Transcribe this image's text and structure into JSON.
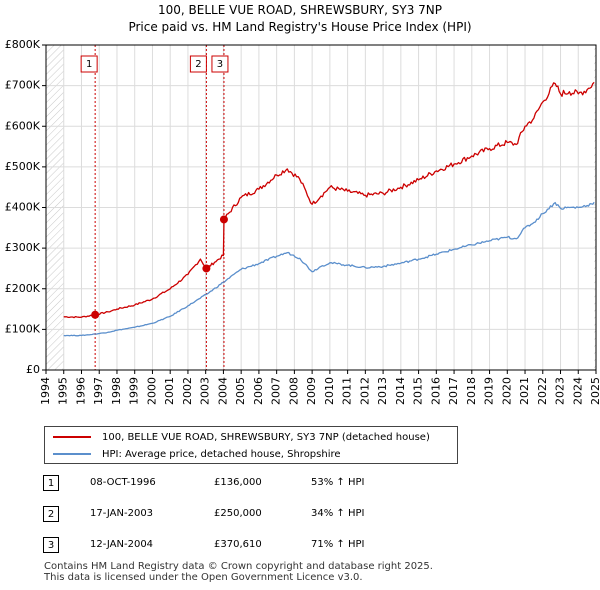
{
  "chart_data": {
    "type": "line",
    "title": "100, BELLE VUE ROAD, SHREWSBURY, SY3 7NP",
    "subtitle": "Price paid vs. HM Land Registry's House Price Index (HPI)",
    "xlabel": "",
    "ylabel": "",
    "xlim": [
      1994,
      2025
    ],
    "ylim": [
      0,
      800000
    ],
    "y_ticks": [
      {
        "value": 0,
        "label": "£0"
      },
      {
        "value": 100000,
        "label": "£100K"
      },
      {
        "value": 200000,
        "label": "£200K"
      },
      {
        "value": 300000,
        "label": "£300K"
      },
      {
        "value": 400000,
        "label": "£400K"
      },
      {
        "value": 500000,
        "label": "£500K"
      },
      {
        "value": 600000,
        "label": "£600K"
      },
      {
        "value": 700000,
        "label": "£700K"
      },
      {
        "value": 800000,
        "label": "£800K"
      }
    ],
    "x_ticks": [
      "1994",
      "1995",
      "1996",
      "1997",
      "1998",
      "1999",
      "2000",
      "2001",
      "2002",
      "2003",
      "2004",
      "2005",
      "2006",
      "2007",
      "2008",
      "2009",
      "2010",
      "2011",
      "2012",
      "2013",
      "2014",
      "2015",
      "2016",
      "2017",
      "2018",
      "2019",
      "2020",
      "2021",
      "2022",
      "2023",
      "2024",
      "2025"
    ],
    "series": [
      {
        "name": "100, BELLE VUE ROAD, SHREWSBURY, SY3 7NP (detached house)",
        "color": "#cc0000",
        "points": [
          [
            1995.0,
            131000
          ],
          [
            1996.0,
            130000
          ],
          [
            1996.77,
            136000
          ],
          [
            1997.5,
            143000
          ],
          [
            1998.0,
            150000
          ],
          [
            1999.0,
            160000
          ],
          [
            2000.0,
            175000
          ],
          [
            2001.0,
            200000
          ],
          [
            2002.0,
            235000
          ],
          [
            2002.7,
            273000
          ],
          [
            2003.04,
            250000
          ],
          [
            2003.5,
            265000
          ],
          [
            2004.0,
            282000
          ],
          [
            2004.03,
            370610
          ],
          [
            2005.0,
            425000
          ],
          [
            2006.0,
            445000
          ],
          [
            2007.0,
            480000
          ],
          [
            2007.6,
            495000
          ],
          [
            2008.3,
            470000
          ],
          [
            2009.0,
            408000
          ],
          [
            2009.5,
            428000
          ],
          [
            2010.0,
            450000
          ],
          [
            2011.0,
            440000
          ],
          [
            2012.0,
            430000
          ],
          [
            2013.0,
            435000
          ],
          [
            2014.0,
            450000
          ],
          [
            2015.0,
            468000
          ],
          [
            2016.0,
            490000
          ],
          [
            2017.0,
            507000
          ],
          [
            2018.0,
            527000
          ],
          [
            2019.0,
            545000
          ],
          [
            2020.0,
            560000
          ],
          [
            2020.5,
            555000
          ],
          [
            2021.0,
            600000
          ],
          [
            2021.5,
            620000
          ],
          [
            2022.0,
            660000
          ],
          [
            2022.7,
            705000
          ],
          [
            2023.0,
            680000
          ],
          [
            2023.5,
            685000
          ],
          [
            2024.0,
            680000
          ],
          [
            2024.5,
            690000
          ],
          [
            2024.9,
            708000
          ]
        ]
      },
      {
        "name": "HPI: Average price, detached house, Shropshire",
        "color": "#5b8fcc",
        "points": [
          [
            1995.0,
            85000
          ],
          [
            1996.0,
            85000
          ],
          [
            1996.77,
            88500
          ],
          [
            1997.5,
            93000
          ],
          [
            1998.0,
            98000
          ],
          [
            1999.0,
            105000
          ],
          [
            2000.0,
            115000
          ],
          [
            2001.0,
            132000
          ],
          [
            2002.0,
            158000
          ],
          [
            2003.04,
            186000
          ],
          [
            2004.0,
            216000
          ],
          [
            2005.0,
            248000
          ],
          [
            2006.0,
            262000
          ],
          [
            2007.0,
            280000
          ],
          [
            2007.6,
            289000
          ],
          [
            2008.3,
            275000
          ],
          [
            2009.0,
            242000
          ],
          [
            2009.5,
            255000
          ],
          [
            2010.0,
            264000
          ],
          [
            2011.0,
            258000
          ],
          [
            2012.0,
            252000
          ],
          [
            2013.0,
            255000
          ],
          [
            2014.0,
            263000
          ],
          [
            2015.0,
            273000
          ],
          [
            2016.0,
            285000
          ],
          [
            2017.0,
            297000
          ],
          [
            2018.0,
            308000
          ],
          [
            2019.0,
            318000
          ],
          [
            2020.0,
            327000
          ],
          [
            2020.5,
            323000
          ],
          [
            2021.0,
            350000
          ],
          [
            2021.5,
            363000
          ],
          [
            2022.0,
            385000
          ],
          [
            2022.7,
            412000
          ],
          [
            2023.0,
            398000
          ],
          [
            2023.5,
            400000
          ],
          [
            2024.0,
            400000
          ],
          [
            2024.5,
            405000
          ],
          [
            2024.9,
            413000
          ]
        ]
      }
    ],
    "sales": [
      {
        "num": "1",
        "x": 1996.77,
        "value": 136000
      },
      {
        "num": "2",
        "x": 2003.04,
        "value": 250000
      },
      {
        "num": "3",
        "x": 2004.03,
        "value": 370610
      }
    ],
    "hatch_regions": [
      [
        1994,
        1995
      ],
      [
        2024.9,
        2025
      ]
    ],
    "grid": true
  },
  "legend": {
    "property_label": "100, BELLE VUE ROAD, SHREWSBURY, SY3 7NP (detached house)",
    "hpi_label": "HPI: Average price, detached house, Shropshire",
    "property_color": "#cc0000",
    "hpi_color": "#5b8fcc"
  },
  "transactions": [
    {
      "num": "1",
      "date": "08-OCT-1996",
      "price": "£136,000",
      "hpi": "53% ↑ HPI"
    },
    {
      "num": "2",
      "date": "17-JAN-2003",
      "price": "£250,000",
      "hpi": "34% ↑ HPI"
    },
    {
      "num": "3",
      "date": "12-JAN-2004",
      "price": "£370,610",
      "hpi": "71% ↑ HPI"
    }
  ],
  "footer": {
    "line1": "Contains HM Land Registry data © Crown copyright and database right 2025.",
    "line2": "This data is licensed under the Open Government Licence v3.0."
  }
}
